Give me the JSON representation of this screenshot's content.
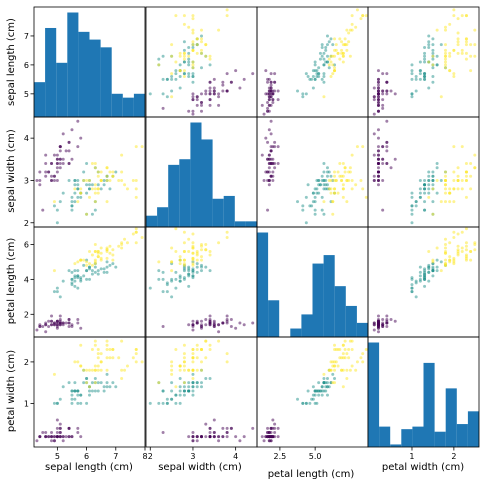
{
  "chart_data": {
    "type": "scatter",
    "variables": [
      "sepal length (cm)",
      "sepal width (cm)",
      "petal length (cm)",
      "petal width (cm)"
    ],
    "ranges": [
      [
        4.2,
        8.0
      ],
      [
        1.9,
        4.5
      ],
      [
        0.7,
        7.0
      ],
      [
        -0.05,
        2.6
      ]
    ],
    "tick_values": [
      [
        5,
        6,
        7,
        8
      ],
      [
        2,
        3,
        4
      ],
      [
        2,
        4,
        6
      ],
      [
        1,
        2
      ]
    ],
    "x_tick_labels": [
      [
        "5",
        "6",
        "7",
        "8"
      ],
      [
        "2",
        "3",
        "4"
      ],
      [
        "2.5",
        "5.0"
      ],
      [
        "1",
        "2"
      ]
    ],
    "y_tick_labels": [
      [
        "5",
        "6",
        "7"
      ],
      [
        "2",
        "3",
        "4"
      ],
      [
        "2",
        "4",
        "6"
      ],
      [
        "1",
        "2"
      ]
    ],
    "diagonal": "histogram",
    "histogram_bins": 10,
    "class_colors": [
      "#440154",
      "#21918c",
      "#fde725"
    ],
    "bar_color": "#1f77b4",
    "point_alpha": 0.5,
    "points": [
      [
        5.1,
        3.5,
        1.4,
        0.2,
        0
      ],
      [
        4.9,
        3.0,
        1.4,
        0.2,
        0
      ],
      [
        4.7,
        3.2,
        1.3,
        0.2,
        0
      ],
      [
        4.6,
        3.1,
        1.5,
        0.2,
        0
      ],
      [
        5.0,
        3.6,
        1.4,
        0.2,
        0
      ],
      [
        5.4,
        3.9,
        1.7,
        0.4,
        0
      ],
      [
        4.6,
        3.4,
        1.4,
        0.3,
        0
      ],
      [
        5.0,
        3.4,
        1.5,
        0.2,
        0
      ],
      [
        4.4,
        2.9,
        1.4,
        0.2,
        0
      ],
      [
        4.9,
        3.1,
        1.5,
        0.1,
        0
      ],
      [
        5.4,
        3.7,
        1.5,
        0.2,
        0
      ],
      [
        4.8,
        3.4,
        1.6,
        0.2,
        0
      ],
      [
        4.8,
        3.0,
        1.4,
        0.1,
        0
      ],
      [
        4.3,
        3.0,
        1.1,
        0.1,
        0
      ],
      [
        5.8,
        4.0,
        1.2,
        0.2,
        0
      ],
      [
        5.7,
        4.4,
        1.5,
        0.4,
        0
      ],
      [
        5.4,
        3.9,
        1.3,
        0.4,
        0
      ],
      [
        5.1,
        3.5,
        1.4,
        0.3,
        0
      ],
      [
        5.7,
        3.8,
        1.7,
        0.3,
        0
      ],
      [
        5.1,
        3.8,
        1.5,
        0.3,
        0
      ],
      [
        5.4,
        3.4,
        1.7,
        0.2,
        0
      ],
      [
        5.1,
        3.7,
        1.5,
        0.4,
        0
      ],
      [
        4.6,
        3.6,
        1.0,
        0.2,
        0
      ],
      [
        5.1,
        3.3,
        1.7,
        0.5,
        0
      ],
      [
        4.8,
        3.4,
        1.9,
        0.2,
        0
      ],
      [
        5.0,
        3.0,
        1.6,
        0.2,
        0
      ],
      [
        5.0,
        3.4,
        1.6,
        0.4,
        0
      ],
      [
        5.2,
        3.5,
        1.5,
        0.2,
        0
      ],
      [
        5.2,
        3.4,
        1.4,
        0.2,
        0
      ],
      [
        4.7,
        3.2,
        1.6,
        0.2,
        0
      ],
      [
        4.8,
        3.1,
        1.6,
        0.2,
        0
      ],
      [
        5.4,
        3.4,
        1.5,
        0.4,
        0
      ],
      [
        5.2,
        4.1,
        1.5,
        0.1,
        0
      ],
      [
        5.5,
        4.2,
        1.4,
        0.2,
        0
      ],
      [
        4.9,
        3.1,
        1.5,
        0.2,
        0
      ],
      [
        5.0,
        3.2,
        1.2,
        0.2,
        0
      ],
      [
        5.5,
        3.5,
        1.3,
        0.2,
        0
      ],
      [
        4.9,
        3.6,
        1.4,
        0.1,
        0
      ],
      [
        4.4,
        3.0,
        1.3,
        0.2,
        0
      ],
      [
        5.1,
        3.4,
        1.5,
        0.2,
        0
      ],
      [
        5.0,
        3.5,
        1.3,
        0.3,
        0
      ],
      [
        4.5,
        2.3,
        1.3,
        0.3,
        0
      ],
      [
        4.4,
        3.2,
        1.3,
        0.2,
        0
      ],
      [
        5.0,
        3.5,
        1.6,
        0.6,
        0
      ],
      [
        5.1,
        3.8,
        1.9,
        0.4,
        0
      ],
      [
        4.8,
        3.0,
        1.4,
        0.3,
        0
      ],
      [
        5.1,
        3.8,
        1.6,
        0.2,
        0
      ],
      [
        4.6,
        3.2,
        1.4,
        0.2,
        0
      ],
      [
        5.3,
        3.7,
        1.5,
        0.2,
        0
      ],
      [
        5.0,
        3.3,
        1.4,
        0.2,
        0
      ],
      [
        7.0,
        3.2,
        4.7,
        1.4,
        1
      ],
      [
        6.4,
        3.2,
        4.5,
        1.5,
        1
      ],
      [
        6.9,
        3.1,
        4.9,
        1.5,
        1
      ],
      [
        5.5,
        2.3,
        4.0,
        1.3,
        1
      ],
      [
        6.5,
        2.8,
        4.6,
        1.5,
        1
      ],
      [
        5.7,
        2.8,
        4.5,
        1.3,
        1
      ],
      [
        6.3,
        3.3,
        4.7,
        1.6,
        1
      ],
      [
        4.9,
        2.4,
        3.3,
        1.0,
        1
      ],
      [
        6.6,
        2.9,
        4.6,
        1.3,
        1
      ],
      [
        5.2,
        2.7,
        3.9,
        1.4,
        1
      ],
      [
        5.0,
        2.0,
        3.5,
        1.0,
        1
      ],
      [
        5.9,
        3.0,
        4.2,
        1.5,
        1
      ],
      [
        6.0,
        2.2,
        4.0,
        1.0,
        1
      ],
      [
        6.1,
        2.9,
        4.7,
        1.4,
        1
      ],
      [
        5.6,
        2.9,
        3.6,
        1.3,
        1
      ],
      [
        6.7,
        3.1,
        4.4,
        1.4,
        1
      ],
      [
        5.6,
        3.0,
        4.5,
        1.5,
        1
      ],
      [
        5.8,
        2.7,
        4.1,
        1.0,
        1
      ],
      [
        6.2,
        2.2,
        4.5,
        1.5,
        1
      ],
      [
        5.6,
        2.5,
        3.9,
        1.1,
        1
      ],
      [
        5.9,
        3.2,
        4.8,
        1.8,
        1
      ],
      [
        6.1,
        2.8,
        4.0,
        1.3,
        1
      ],
      [
        6.3,
        2.5,
        4.9,
        1.5,
        1
      ],
      [
        6.1,
        2.8,
        4.7,
        1.2,
        1
      ],
      [
        6.4,
        2.9,
        4.3,
        1.3,
        1
      ],
      [
        6.6,
        3.0,
        4.4,
        1.4,
        1
      ],
      [
        6.8,
        2.8,
        4.8,
        1.4,
        1
      ],
      [
        6.7,
        3.0,
        5.0,
        1.7,
        1
      ],
      [
        6.0,
        2.9,
        4.5,
        1.5,
        1
      ],
      [
        5.7,
        2.6,
        3.5,
        1.0,
        1
      ],
      [
        5.5,
        2.4,
        3.8,
        1.1,
        1
      ],
      [
        5.5,
        2.4,
        3.7,
        1.0,
        1
      ],
      [
        5.8,
        2.7,
        3.9,
        1.2,
        1
      ],
      [
        6.0,
        2.7,
        5.1,
        1.6,
        1
      ],
      [
        5.4,
        3.0,
        4.5,
        1.5,
        1
      ],
      [
        6.0,
        3.4,
        4.5,
        1.6,
        1
      ],
      [
        6.7,
        3.1,
        4.7,
        1.5,
        1
      ],
      [
        6.3,
        2.3,
        4.4,
        1.3,
        1
      ],
      [
        5.6,
        3.0,
        4.1,
        1.3,
        1
      ],
      [
        5.5,
        2.5,
        4.0,
        1.3,
        1
      ],
      [
        5.5,
        2.6,
        4.4,
        1.2,
        1
      ],
      [
        6.1,
        3.0,
        4.6,
        1.4,
        1
      ],
      [
        5.8,
        2.6,
        4.0,
        1.2,
        1
      ],
      [
        5.0,
        2.3,
        3.3,
        1.0,
        1
      ],
      [
        5.6,
        2.7,
        4.2,
        1.3,
        1
      ],
      [
        5.7,
        3.0,
        4.2,
        1.2,
        1
      ],
      [
        5.7,
        2.9,
        4.2,
        1.3,
        1
      ],
      [
        6.2,
        2.9,
        4.3,
        1.3,
        1
      ],
      [
        5.1,
        2.5,
        3.0,
        1.1,
        1
      ],
      [
        5.7,
        2.8,
        4.1,
        1.3,
        1
      ],
      [
        6.3,
        3.3,
        6.0,
        2.5,
        2
      ],
      [
        5.8,
        2.7,
        5.1,
        1.9,
        2
      ],
      [
        7.1,
        3.0,
        5.9,
        2.1,
        2
      ],
      [
        6.3,
        2.9,
        5.6,
        1.8,
        2
      ],
      [
        6.5,
        3.0,
        5.8,
        2.2,
        2
      ],
      [
        7.6,
        3.0,
        6.6,
        2.1,
        2
      ],
      [
        4.9,
        2.5,
        4.5,
        1.7,
        2
      ],
      [
        7.3,
        2.9,
        6.3,
        1.8,
        2
      ],
      [
        6.7,
        2.5,
        5.8,
        1.8,
        2
      ],
      [
        7.2,
        3.6,
        6.1,
        2.5,
        2
      ],
      [
        6.5,
        3.2,
        5.1,
        2.0,
        2
      ],
      [
        6.4,
        2.7,
        5.3,
        1.9,
        2
      ],
      [
        6.8,
        3.0,
        5.5,
        2.1,
        2
      ],
      [
        5.7,
        2.5,
        5.0,
        2.0,
        2
      ],
      [
        5.8,
        2.8,
        5.1,
        2.4,
        2
      ],
      [
        6.4,
        3.2,
        5.3,
        2.3,
        2
      ],
      [
        6.5,
        3.0,
        5.5,
        1.8,
        2
      ],
      [
        7.7,
        3.8,
        6.7,
        2.2,
        2
      ],
      [
        7.7,
        2.6,
        6.9,
        2.3,
        2
      ],
      [
        6.0,
        2.2,
        5.0,
        1.5,
        2
      ],
      [
        6.9,
        3.2,
        5.7,
        2.3,
        2
      ],
      [
        5.6,
        2.8,
        4.9,
        2.0,
        2
      ],
      [
        7.7,
        2.8,
        6.7,
        2.0,
        2
      ],
      [
        6.3,
        2.7,
        4.9,
        1.8,
        2
      ],
      [
        6.7,
        3.3,
        5.7,
        2.1,
        2
      ],
      [
        7.2,
        3.2,
        6.0,
        1.8,
        2
      ],
      [
        6.2,
        2.8,
        4.8,
        1.8,
        2
      ],
      [
        6.1,
        3.0,
        4.9,
        1.8,
        2
      ],
      [
        6.4,
        2.8,
        5.6,
        2.1,
        2
      ],
      [
        7.2,
        3.0,
        5.8,
        1.6,
        2
      ],
      [
        7.4,
        2.8,
        6.1,
        1.9,
        2
      ],
      [
        7.9,
        3.8,
        6.4,
        2.0,
        2
      ],
      [
        6.4,
        2.8,
        5.6,
        2.2,
        2
      ],
      [
        6.3,
        2.8,
        5.1,
        1.5,
        2
      ],
      [
        6.1,
        2.6,
        5.6,
        1.4,
        2
      ],
      [
        7.7,
        3.0,
        6.1,
        2.3,
        2
      ],
      [
        6.3,
        3.4,
        5.6,
        2.4,
        2
      ],
      [
        6.4,
        3.1,
        5.5,
        1.8,
        2
      ],
      [
        6.0,
        3.0,
        4.8,
        1.8,
        2
      ],
      [
        6.9,
        3.1,
        5.4,
        2.1,
        2
      ],
      [
        6.7,
        3.1,
        5.6,
        2.4,
        2
      ],
      [
        6.9,
        3.1,
        5.1,
        2.3,
        2
      ],
      [
        5.8,
        2.7,
        5.1,
        1.9,
        2
      ],
      [
        6.8,
        3.2,
        5.9,
        2.3,
        2
      ],
      [
        6.7,
        3.3,
        5.7,
        2.5,
        2
      ],
      [
        6.7,
        3.0,
        5.2,
        2.3,
        2
      ],
      [
        6.3,
        2.5,
        5.0,
        1.9,
        2
      ],
      [
        6.5,
        3.0,
        5.2,
        2.0,
        2
      ],
      [
        6.2,
        3.4,
        5.4,
        2.3,
        2
      ],
      [
        5.9,
        3.0,
        5.1,
        1.8,
        2
      ]
    ]
  }
}
